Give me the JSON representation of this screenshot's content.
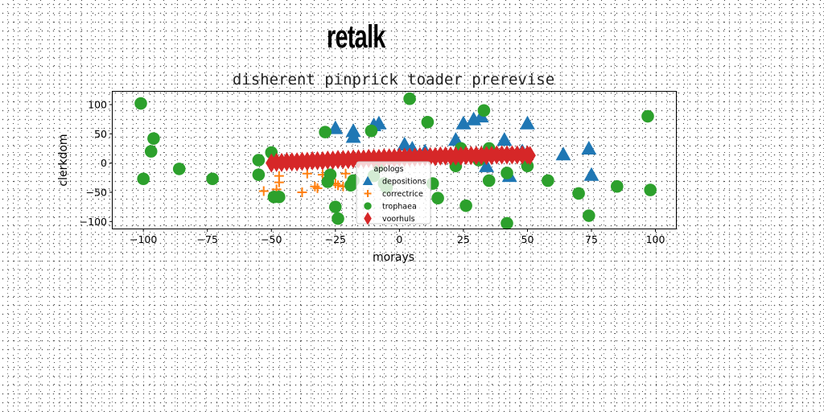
{
  "suptitle": "retalk",
  "chart_data": {
    "type": "scatter",
    "title": "disherent pinprick toader prerevise",
    "xlabel": "morays",
    "ylabel": "clerkdom",
    "xlim": [
      -112,
      108
    ],
    "ylim": [
      -112,
      122
    ],
    "xticks": [
      -100,
      -75,
      -50,
      -25,
      0,
      25,
      50,
      75,
      100
    ],
    "yticks": [
      -100,
      -50,
      0,
      50,
      100
    ],
    "xtick_labels": [
      "−100",
      "−75",
      "−50",
      "−25",
      "0",
      "25",
      "50",
      "75",
      "100"
    ],
    "ytick_labels": [
      "−100",
      "−50",
      "0",
      "50",
      "100"
    ],
    "grid": false,
    "legend": {
      "title": "apologs",
      "placement": "center"
    },
    "series": [
      {
        "name": "depositions",
        "marker": "triangle",
        "color": "#1f77b4",
        "points": [
          [
            -25,
            60
          ],
          [
            -18,
            55
          ],
          [
            -18,
            45
          ],
          [
            -10,
            65
          ],
          [
            -8,
            68
          ],
          [
            2,
            32
          ],
          [
            5,
            25
          ],
          [
            10,
            20
          ],
          [
            22,
            40
          ],
          [
            25,
            68
          ],
          [
            29,
            75
          ],
          [
            32,
            80
          ],
          [
            34,
            -5
          ],
          [
            41,
            40
          ],
          [
            43,
            -22
          ],
          [
            48,
            20
          ],
          [
            50,
            68
          ],
          [
            64,
            15
          ],
          [
            74,
            25
          ],
          [
            75,
            -20
          ]
        ]
      },
      {
        "name": "correctrice",
        "marker": "plus",
        "color": "#ff7f0e",
        "points": [
          [
            -53,
            -48
          ],
          [
            -48,
            -45
          ],
          [
            -47,
            -22
          ],
          [
            -47,
            -33
          ],
          [
            -38,
            -50
          ],
          [
            -36,
            -18
          ],
          [
            -33,
            -40
          ],
          [
            -32,
            -43
          ],
          [
            -30,
            -20
          ],
          [
            -25,
            -35
          ],
          [
            -24,
            -38
          ],
          [
            -22,
            -40
          ],
          [
            -21,
            -18
          ]
        ]
      },
      {
        "name": "trophaea",
        "marker": "circle",
        "color": "#2ca02c",
        "points": [
          [
            -101,
            102
          ],
          [
            -100,
            -27
          ],
          [
            -97,
            20
          ],
          [
            -96,
            42
          ],
          [
            -86,
            -10
          ],
          [
            -73,
            -27
          ],
          [
            -55,
            5
          ],
          [
            -55,
            -20
          ],
          [
            -50,
            18
          ],
          [
            -49,
            -58
          ],
          [
            -47,
            -58
          ],
          [
            -29,
            53
          ],
          [
            -28,
            -32
          ],
          [
            -27,
            -20
          ],
          [
            -25,
            -75
          ],
          [
            -24,
            -95
          ],
          [
            -19,
            -38
          ],
          [
            -18,
            -30
          ],
          [
            -11,
            55
          ],
          [
            -10,
            -22
          ],
          [
            -8,
            -5
          ],
          [
            -6,
            -35
          ],
          [
            -5,
            -42
          ],
          [
            4,
            110
          ],
          [
            11,
            70
          ],
          [
            13,
            -35
          ],
          [
            15,
            -60
          ],
          [
            22,
            -5
          ],
          [
            24,
            25
          ],
          [
            26,
            -73
          ],
          [
            31,
            5
          ],
          [
            33,
            90
          ],
          [
            35,
            25
          ],
          [
            35,
            -30
          ],
          [
            42,
            -17
          ],
          [
            42,
            -103
          ],
          [
            50,
            -5
          ],
          [
            58,
            -30
          ],
          [
            70,
            -52
          ],
          [
            74,
            -90
          ],
          [
            85,
            -40
          ],
          [
            97,
            80
          ],
          [
            98,
            -46
          ]
        ]
      },
      {
        "name": "voorhuls",
        "marker": "thin_diamond",
        "color": "#d62728",
        "points": [
          [
            -50,
            0
          ],
          [
            -48,
            1
          ],
          [
            -46,
            1
          ],
          [
            -44,
            2
          ],
          [
            -42,
            2
          ],
          [
            -40,
            2
          ],
          [
            -38,
            3
          ],
          [
            -36,
            3
          ],
          [
            -34,
            4
          ],
          [
            -32,
            4
          ],
          [
            -30,
            4
          ],
          [
            -28,
            5
          ],
          [
            -26,
            5
          ],
          [
            -24,
            6
          ],
          [
            -22,
            6
          ],
          [
            -20,
            6
          ],
          [
            -18,
            7
          ],
          [
            -16,
            7
          ],
          [
            -14,
            7
          ],
          [
            -12,
            8
          ],
          [
            -10,
            8
          ],
          [
            -8,
            8
          ],
          [
            -6,
            9
          ],
          [
            -4,
            9
          ],
          [
            -2,
            9
          ],
          [
            0,
            10
          ],
          [
            2,
            10
          ],
          [
            4,
            10
          ],
          [
            6,
            10
          ],
          [
            8,
            11
          ],
          [
            10,
            11
          ],
          [
            12,
            11
          ],
          [
            14,
            11
          ],
          [
            16,
            12
          ],
          [
            18,
            12
          ],
          [
            20,
            12
          ],
          [
            22,
            12
          ],
          [
            24,
            12
          ],
          [
            26,
            13
          ],
          [
            28,
            13
          ],
          [
            30,
            13
          ],
          [
            32,
            13
          ],
          [
            34,
            13
          ],
          [
            36,
            13
          ],
          [
            38,
            14
          ],
          [
            40,
            14
          ],
          [
            42,
            14
          ],
          [
            44,
            14
          ],
          [
            46,
            14
          ],
          [
            48,
            14
          ],
          [
            50,
            14
          ],
          [
            51,
            13
          ]
        ]
      }
    ]
  }
}
